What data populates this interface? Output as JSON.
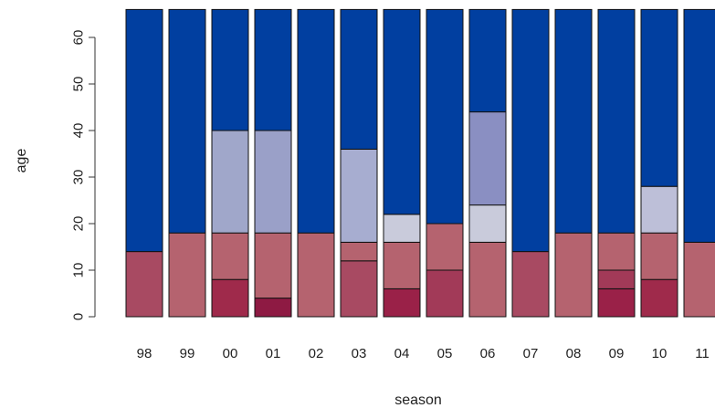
{
  "chart_data": {
    "type": "bar",
    "stacked": true,
    "title": "",
    "xlabel": "season",
    "ylabel": "age",
    "ylim": [
      0,
      66
    ],
    "yticks": [
      "0",
      "10",
      "20",
      "30",
      "40",
      "50",
      "60"
    ],
    "categories": [
      "98",
      "99",
      "00",
      "01",
      "02",
      "03",
      "04",
      "05",
      "06",
      "07",
      "08",
      "09",
      "10",
      "11"
    ],
    "bars": [
      {
        "season": "98",
        "segments": [
          {
            "from": 0,
            "to": 14,
            "color": "#a84a62"
          },
          {
            "from": 14,
            "to": 66,
            "color": "#013fa0"
          }
        ]
      },
      {
        "season": "99",
        "segments": [
          {
            "from": 0,
            "to": 18,
            "color": "#b5636f"
          },
          {
            "from": 18,
            "to": 66,
            "color": "#013fa0"
          }
        ]
      },
      {
        "season": "00",
        "segments": [
          {
            "from": 0,
            "to": 8,
            "color": "#9f2a4b"
          },
          {
            "from": 8,
            "to": 18,
            "color": "#b5636f"
          },
          {
            "from": 18,
            "to": 40,
            "color": "#a0a7ca"
          },
          {
            "from": 40,
            "to": 66,
            "color": "#013fa0"
          }
        ]
      },
      {
        "season": "01",
        "segments": [
          {
            "from": 0,
            "to": 4,
            "color": "#8e1a43"
          },
          {
            "from": 4,
            "to": 18,
            "color": "#b5636f"
          },
          {
            "from": 18,
            "to": 40,
            "color": "#9aa0c8"
          },
          {
            "from": 40,
            "to": 66,
            "color": "#013fa0"
          }
        ]
      },
      {
        "season": "02",
        "segments": [
          {
            "from": 0,
            "to": 18,
            "color": "#b5636f"
          },
          {
            "from": 18,
            "to": 66,
            "color": "#013fa0"
          }
        ]
      },
      {
        "season": "03",
        "segments": [
          {
            "from": 0,
            "to": 12,
            "color": "#a84a62"
          },
          {
            "from": 12,
            "to": 16,
            "color": "#b5636f"
          },
          {
            "from": 16,
            "to": 36,
            "color": "#a7add0"
          },
          {
            "from": 36,
            "to": 66,
            "color": "#013fa0"
          }
        ]
      },
      {
        "season": "04",
        "segments": [
          {
            "from": 0,
            "to": 6,
            "color": "#9a2148"
          },
          {
            "from": 6,
            "to": 16,
            "color": "#b5636f"
          },
          {
            "from": 16,
            "to": 22,
            "color": "#c9cbdb"
          },
          {
            "from": 22,
            "to": 66,
            "color": "#013fa0"
          }
        ]
      },
      {
        "season": "05",
        "segments": [
          {
            "from": 0,
            "to": 10,
            "color": "#a23a58"
          },
          {
            "from": 10,
            "to": 20,
            "color": "#b5636f"
          },
          {
            "from": 20,
            "to": 66,
            "color": "#013fa0"
          }
        ]
      },
      {
        "season": "06",
        "segments": [
          {
            "from": 0,
            "to": 16,
            "color": "#b5636f"
          },
          {
            "from": 16,
            "to": 24,
            "color": "#c9cbdb"
          },
          {
            "from": 24,
            "to": 44,
            "color": "#8a8fc2"
          },
          {
            "from": 44,
            "to": 66,
            "color": "#013fa0"
          }
        ]
      },
      {
        "season": "07",
        "segments": [
          {
            "from": 0,
            "to": 14,
            "color": "#a84a62"
          },
          {
            "from": 14,
            "to": 66,
            "color": "#013fa0"
          }
        ]
      },
      {
        "season": "08",
        "segments": [
          {
            "from": 0,
            "to": 18,
            "color": "#b5636f"
          },
          {
            "from": 18,
            "to": 66,
            "color": "#013fa0"
          }
        ]
      },
      {
        "season": "09",
        "segments": [
          {
            "from": 0,
            "to": 6,
            "color": "#9a2148"
          },
          {
            "from": 6,
            "to": 10,
            "color": "#a23a58"
          },
          {
            "from": 10,
            "to": 18,
            "color": "#b5636f"
          },
          {
            "from": 18,
            "to": 66,
            "color": "#013fa0"
          }
        ]
      },
      {
        "season": "10",
        "segments": [
          {
            "from": 0,
            "to": 8,
            "color": "#9f2a4b"
          },
          {
            "from": 8,
            "to": 18,
            "color": "#b5636f"
          },
          {
            "from": 18,
            "to": 28,
            "color": "#bdbfd8"
          },
          {
            "from": 28,
            "to": 66,
            "color": "#013fa0"
          }
        ]
      },
      {
        "season": "11",
        "segments": [
          {
            "from": 0,
            "to": 16,
            "color": "#b5636f"
          },
          {
            "from": 16,
            "to": 66,
            "color": "#013fa0"
          }
        ]
      }
    ],
    "grid": false,
    "legend": "none"
  }
}
